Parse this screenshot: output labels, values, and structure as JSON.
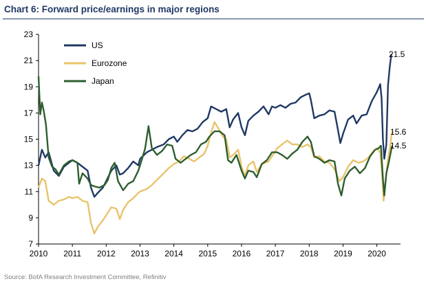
{
  "chart_data": {
    "type": "line",
    "title": "Chart 6: Forward price/earnings in major regions",
    "source": "Source: BofA Research Investment Committee, Refinitiv",
    "xlabel": "",
    "ylabel": "",
    "xlim": [
      2010,
      2020.7
    ],
    "ylim": [
      7,
      23
    ],
    "y_ticks": [
      "7",
      "9",
      "11",
      "13",
      "15",
      "17",
      "19",
      "21",
      "23"
    ],
    "x_ticks": [
      "2010",
      "2011",
      "2012",
      "2013",
      "2014",
      "2015",
      "2016",
      "2017",
      "2018",
      "2019",
      "2020"
    ],
    "grid": false,
    "legend_position": "top-left",
    "series": [
      {
        "name": "US",
        "color": "#1f3864",
        "end_label": "21.5",
        "points": [
          [
            2010.0,
            13.0
          ],
          [
            2010.1,
            14.2
          ],
          [
            2010.2,
            13.6
          ],
          [
            2010.3,
            14.0
          ],
          [
            2010.45,
            12.6
          ],
          [
            2010.6,
            12.2
          ],
          [
            2010.75,
            12.9
          ],
          [
            2010.9,
            13.2
          ],
          [
            2011.0,
            13.4
          ],
          [
            2011.15,
            13.2
          ],
          [
            2011.3,
            12.9
          ],
          [
            2011.45,
            12.6
          ],
          [
            2011.55,
            11.3
          ],
          [
            2011.65,
            10.6
          ],
          [
            2011.75,
            10.9
          ],
          [
            2011.9,
            11.3
          ],
          [
            2012.0,
            11.8
          ],
          [
            2012.15,
            12.6
          ],
          [
            2012.3,
            13.0
          ],
          [
            2012.4,
            12.3
          ],
          [
            2012.5,
            12.4
          ],
          [
            2012.65,
            12.8
          ],
          [
            2012.8,
            13.3
          ],
          [
            2012.95,
            13.0
          ],
          [
            2013.0,
            13.5
          ],
          [
            2013.2,
            14.0
          ],
          [
            2013.35,
            14.2
          ],
          [
            2013.5,
            14.4
          ],
          [
            2013.7,
            14.6
          ],
          [
            2013.85,
            15.0
          ],
          [
            2014.0,
            15.2
          ],
          [
            2014.1,
            14.8
          ],
          [
            2014.25,
            15.3
          ],
          [
            2014.4,
            15.7
          ],
          [
            2014.55,
            15.6
          ],
          [
            2014.7,
            15.8
          ],
          [
            2014.85,
            16.3
          ],
          [
            2015.0,
            16.6
          ],
          [
            2015.1,
            17.5
          ],
          [
            2015.25,
            17.3
          ],
          [
            2015.4,
            17.1
          ],
          [
            2015.55,
            17.3
          ],
          [
            2015.65,
            15.9
          ],
          [
            2015.75,
            16.5
          ],
          [
            2015.9,
            17.0
          ],
          [
            2016.0,
            15.9
          ],
          [
            2016.1,
            15.3
          ],
          [
            2016.2,
            16.4
          ],
          [
            2016.35,
            16.8
          ],
          [
            2016.5,
            17.1
          ],
          [
            2016.65,
            17.5
          ],
          [
            2016.8,
            16.9
          ],
          [
            2016.9,
            17.5
          ],
          [
            2017.0,
            17.4
          ],
          [
            2017.15,
            17.6
          ],
          [
            2017.3,
            17.4
          ],
          [
            2017.45,
            17.7
          ],
          [
            2017.6,
            17.8
          ],
          [
            2017.75,
            18.2
          ],
          [
            2017.9,
            18.4
          ],
          [
            2018.0,
            18.5
          ],
          [
            2018.05,
            18.0
          ],
          [
            2018.15,
            16.6
          ],
          [
            2018.3,
            16.8
          ],
          [
            2018.45,
            16.9
          ],
          [
            2018.6,
            17.2
          ],
          [
            2018.75,
            17.1
          ],
          [
            2018.85,
            15.7
          ],
          [
            2018.92,
            14.7
          ],
          [
            2019.0,
            15.4
          ],
          [
            2019.15,
            16.5
          ],
          [
            2019.3,
            16.8
          ],
          [
            2019.4,
            16.2
          ],
          [
            2019.55,
            16.8
          ],
          [
            2019.7,
            16.9
          ],
          [
            2019.85,
            17.9
          ],
          [
            2020.0,
            18.6
          ],
          [
            2020.1,
            19.2
          ],
          [
            2020.14,
            18.1
          ],
          [
            2020.18,
            15.0
          ],
          [
            2020.22,
            13.5
          ],
          [
            2020.28,
            14.6
          ],
          [
            2020.33,
            19.1
          ],
          [
            2020.38,
            20.5
          ],
          [
            2020.43,
            21.5
          ]
        ]
      },
      {
        "name": "Eurozone",
        "color": "#e8c36a",
        "end_label": "15.6",
        "points": [
          [
            2010.0,
            11.3
          ],
          [
            2010.1,
            12.0
          ],
          [
            2010.2,
            11.8
          ],
          [
            2010.3,
            10.3
          ],
          [
            2010.45,
            10.0
          ],
          [
            2010.6,
            10.3
          ],
          [
            2010.75,
            10.4
          ],
          [
            2010.9,
            10.6
          ],
          [
            2011.0,
            10.5
          ],
          [
            2011.15,
            10.6
          ],
          [
            2011.3,
            10.3
          ],
          [
            2011.45,
            10.2
          ],
          [
            2011.55,
            8.6
          ],
          [
            2011.65,
            7.8
          ],
          [
            2011.75,
            8.3
          ],
          [
            2011.9,
            8.8
          ],
          [
            2012.0,
            9.2
          ],
          [
            2012.15,
            9.8
          ],
          [
            2012.3,
            9.7
          ],
          [
            2012.4,
            8.9
          ],
          [
            2012.5,
            9.6
          ],
          [
            2012.65,
            10.2
          ],
          [
            2012.8,
            10.5
          ],
          [
            2012.95,
            10.9
          ],
          [
            2013.0,
            11.0
          ],
          [
            2013.2,
            11.2
          ],
          [
            2013.35,
            11.5
          ],
          [
            2013.5,
            11.9
          ],
          [
            2013.7,
            12.4
          ],
          [
            2013.85,
            12.8
          ],
          [
            2014.0,
            13.1
          ],
          [
            2014.15,
            13.3
          ],
          [
            2014.3,
            13.7
          ],
          [
            2014.45,
            13.5
          ],
          [
            2014.6,
            13.3
          ],
          [
            2014.75,
            13.6
          ],
          [
            2014.9,
            13.9
          ],
          [
            2015.0,
            14.5
          ],
          [
            2015.1,
            15.5
          ],
          [
            2015.2,
            16.3
          ],
          [
            2015.3,
            15.9
          ],
          [
            2015.45,
            15.2
          ],
          [
            2015.55,
            15.0
          ],
          [
            2015.65,
            13.6
          ],
          [
            2015.75,
            13.8
          ],
          [
            2015.9,
            14.2
          ],
          [
            2016.0,
            12.9
          ],
          [
            2016.1,
            12.2
          ],
          [
            2016.2,
            13.0
          ],
          [
            2016.35,
            13.3
          ],
          [
            2016.45,
            12.5
          ],
          [
            2016.6,
            13.1
          ],
          [
            2016.8,
            13.3
          ],
          [
            2016.95,
            13.9
          ],
          [
            2017.05,
            14.3
          ],
          [
            2017.2,
            14.6
          ],
          [
            2017.35,
            14.9
          ],
          [
            2017.5,
            14.6
          ],
          [
            2017.65,
            14.6
          ],
          [
            2017.8,
            14.4
          ],
          [
            2017.95,
            14.6
          ],
          [
            2018.05,
            14.4
          ],
          [
            2018.15,
            13.6
          ],
          [
            2018.3,
            13.7
          ],
          [
            2018.45,
            13.3
          ],
          [
            2018.6,
            13.2
          ],
          [
            2018.75,
            12.7
          ],
          [
            2018.9,
            11.8
          ],
          [
            2019.0,
            12.1
          ],
          [
            2019.15,
            12.9
          ],
          [
            2019.3,
            13.4
          ],
          [
            2019.45,
            13.2
          ],
          [
            2019.6,
            13.3
          ],
          [
            2019.75,
            13.6
          ],
          [
            2019.9,
            14.1
          ],
          [
            2020.0,
            14.3
          ],
          [
            2020.1,
            14.0
          ],
          [
            2020.16,
            12.0
          ],
          [
            2020.2,
            10.3
          ],
          [
            2020.25,
            11.6
          ],
          [
            2020.33,
            13.5
          ],
          [
            2020.4,
            14.6
          ],
          [
            2020.45,
            15.6
          ]
        ]
      },
      {
        "name": "Japan",
        "color": "#2e5e2e",
        "end_label": "14.5",
        "points": [
          [
            2010.0,
            19.8
          ],
          [
            2010.05,
            16.9
          ],
          [
            2010.1,
            17.8
          ],
          [
            2010.15,
            17.2
          ],
          [
            2010.22,
            16.1
          ],
          [
            2010.3,
            13.6
          ],
          [
            2010.4,
            12.9
          ],
          [
            2010.5,
            12.7
          ],
          [
            2010.6,
            12.3
          ],
          [
            2010.75,
            13.0
          ],
          [
            2010.9,
            13.3
          ],
          [
            2011.0,
            13.4
          ],
          [
            2011.15,
            13.2
          ],
          [
            2011.2,
            11.6
          ],
          [
            2011.3,
            12.4
          ],
          [
            2011.45,
            12.0
          ],
          [
            2011.55,
            11.5
          ],
          [
            2011.65,
            11.4
          ],
          [
            2011.8,
            11.3
          ],
          [
            2011.95,
            11.5
          ],
          [
            2012.05,
            11.9
          ],
          [
            2012.15,
            12.8
          ],
          [
            2012.25,
            13.2
          ],
          [
            2012.35,
            11.8
          ],
          [
            2012.5,
            11.1
          ],
          [
            2012.65,
            11.6
          ],
          [
            2012.8,
            11.8
          ],
          [
            2012.95,
            12.6
          ],
          [
            2013.05,
            13.4
          ],
          [
            2013.15,
            14.3
          ],
          [
            2013.25,
            16.0
          ],
          [
            2013.35,
            14.3
          ],
          [
            2013.5,
            13.8
          ],
          [
            2013.65,
            14.1
          ],
          [
            2013.8,
            14.6
          ],
          [
            2013.95,
            14.5
          ],
          [
            2014.05,
            13.5
          ],
          [
            2014.2,
            13.2
          ],
          [
            2014.35,
            13.5
          ],
          [
            2014.5,
            13.8
          ],
          [
            2014.65,
            14.0
          ],
          [
            2014.8,
            14.6
          ],
          [
            2014.95,
            14.8
          ],
          [
            2015.05,
            15.2
          ],
          [
            2015.2,
            15.6
          ],
          [
            2015.35,
            15.6
          ],
          [
            2015.5,
            15.3
          ],
          [
            2015.6,
            13.4
          ],
          [
            2015.7,
            13.2
          ],
          [
            2015.85,
            13.8
          ],
          [
            2016.0,
            12.6
          ],
          [
            2016.1,
            12.0
          ],
          [
            2016.2,
            12.6
          ],
          [
            2016.35,
            12.5
          ],
          [
            2016.45,
            12.1
          ],
          [
            2016.6,
            13.1
          ],
          [
            2016.75,
            13.4
          ],
          [
            2016.9,
            14.0
          ],
          [
            2017.05,
            14.0
          ],
          [
            2017.2,
            13.8
          ],
          [
            2017.35,
            13.5
          ],
          [
            2017.5,
            13.9
          ],
          [
            2017.65,
            14.2
          ],
          [
            2017.8,
            14.8
          ],
          [
            2017.95,
            15.2
          ],
          [
            2018.05,
            14.8
          ],
          [
            2018.15,
            13.7
          ],
          [
            2018.3,
            13.5
          ],
          [
            2018.45,
            13.2
          ],
          [
            2018.6,
            13.4
          ],
          [
            2018.75,
            13.3
          ],
          [
            2018.85,
            11.6
          ],
          [
            2018.95,
            10.7
          ],
          [
            2019.05,
            12.0
          ],
          [
            2019.2,
            12.6
          ],
          [
            2019.35,
            12.9
          ],
          [
            2019.5,
            12.4
          ],
          [
            2019.65,
            12.8
          ],
          [
            2019.8,
            13.7
          ],
          [
            2019.95,
            14.2
          ],
          [
            2020.05,
            14.3
          ],
          [
            2020.12,
            14.5
          ],
          [
            2020.18,
            12.0
          ],
          [
            2020.22,
            10.7
          ],
          [
            2020.28,
            12.4
          ],
          [
            2020.35,
            13.2
          ],
          [
            2020.45,
            14.5
          ]
        ]
      }
    ]
  }
}
